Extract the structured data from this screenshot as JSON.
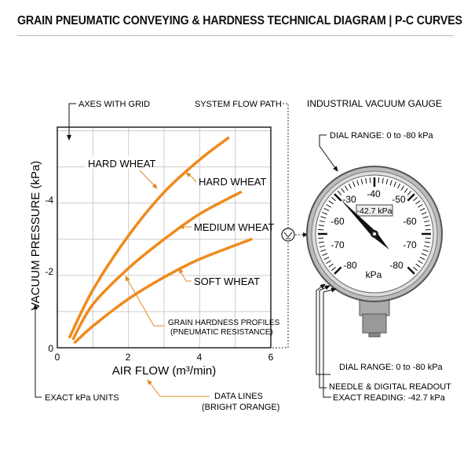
{
  "title": "GRAIN PNEUMATIC CONVEYING & HARDNESS TECHNICAL DIAGRAM | P-C CURVES",
  "annotations": {
    "axes_with_grid": "AXES WITH GRID",
    "system_flow_path": "SYSTEM FLOW PATH",
    "exact_kpa_units": "EXACT kPa UNITS",
    "data_lines_1": "DATA LINES",
    "data_lines_2": "(BRIGHT ORANGE)",
    "profiles_1": "GRAIN HARDNESS PROFILES",
    "profiles_2": "(PNEUMATIC RESISTANCE)"
  },
  "chart_data": {
    "type": "line",
    "xlabel": "AIR FLOW (m³/min)",
    "ylabel": "VACUUM PRESSURE (kPa)",
    "xlim": [
      0,
      6
    ],
    "ylim": [
      0,
      -6.1
    ],
    "x_ticks": [
      "0",
      "2",
      "4",
      "6"
    ],
    "y_ticks": [
      "0",
      "-2",
      "-4"
    ],
    "grid": true,
    "line_color": "#f08a1c",
    "series": [
      {
        "name": "HARD WHEAT",
        "x": [
          0.35,
          1,
          2,
          3,
          4,
          4.8
        ],
        "y": [
          -0.3,
          -1.6,
          -3.1,
          -4.3,
          -5.2,
          -5.8
        ]
      },
      {
        "name": "MEDIUM WHEAT",
        "x": [
          0.45,
          1,
          2,
          3,
          4,
          5.15
        ],
        "y": [
          -0.25,
          -1.2,
          -2.2,
          -3.0,
          -3.7,
          -4.3
        ]
      },
      {
        "name": "SOFT WHEAT",
        "x": [
          0.5,
          1,
          2,
          3,
          4,
          5.45
        ],
        "y": [
          -0.15,
          -0.6,
          -1.35,
          -1.95,
          -2.45,
          -3.0
        ]
      }
    ],
    "series_labels": [
      "HARD WHEAT",
      "HARD WHEAT",
      "MEDIUM WHEAT",
      "SOFT WHEAT"
    ]
  },
  "gauge": {
    "title": "INDUSTRIAL VACUUM GAUGE",
    "dial_range_top": "DIAL RANGE: 0 to -80 kPa",
    "dial_range_bottom": "DIAL RANGE: 0 to -80 kPa",
    "needle_readout": "NEEDLE & DIGITAL READOUT",
    "exact_reading": "EXACT READING: -42.7 kPa",
    "readout": "-42.7 kPa",
    "unit": "kPa",
    "scale_labels": [
      "-30",
      "-40",
      "-50",
      "-60",
      "-60",
      "-70",
      "-70",
      "-80",
      "-80"
    ]
  }
}
